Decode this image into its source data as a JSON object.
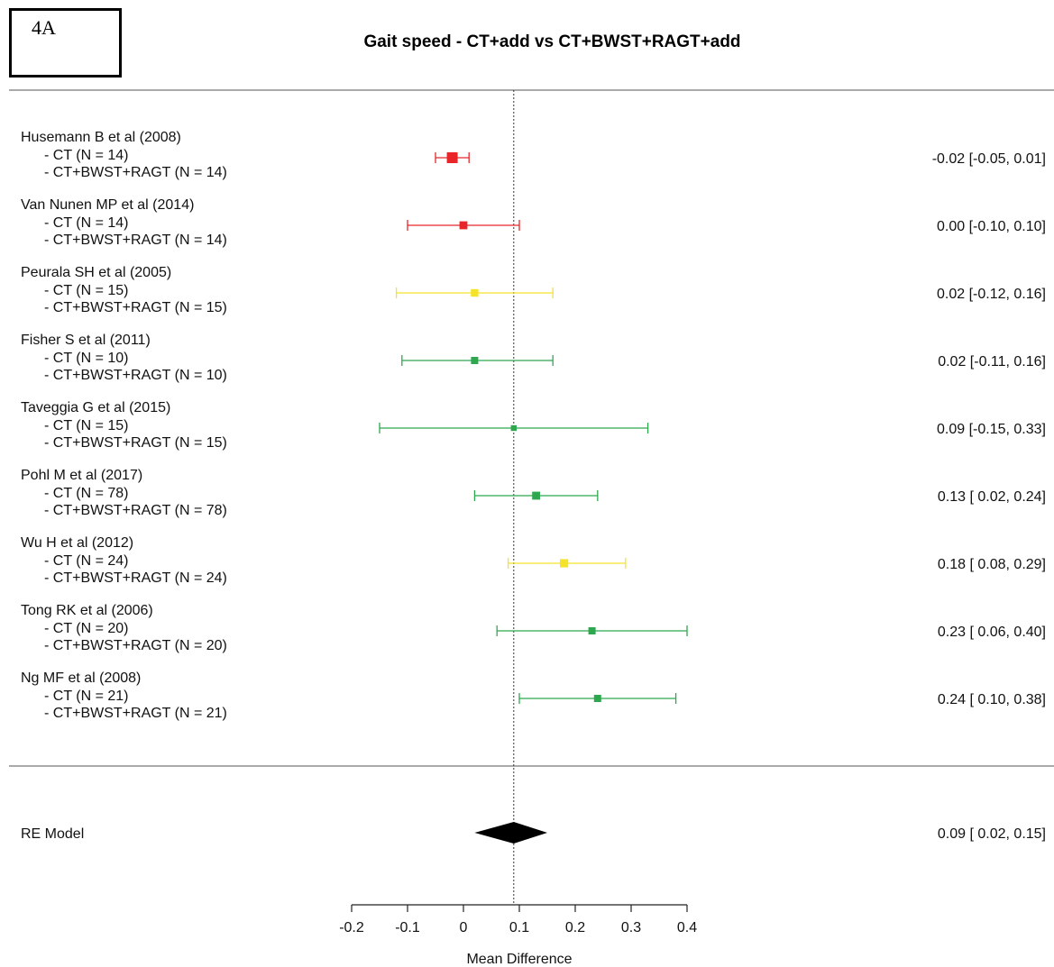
{
  "panel_label": "4A",
  "chart_data": {
    "type": "forest",
    "title": "Gait speed - CT+add vs CT+BWST+RAGT+add",
    "xlabel": "Mean Difference",
    "xlim": [
      -0.2,
      0.4
    ],
    "xticks": [
      -0.2,
      -0.1,
      0,
      0.1,
      0.2,
      0.3,
      0.4
    ],
    "xtick_labels": [
      "-0.2",
      "-0.1",
      "0",
      "0.1",
      "0.2",
      "0.3",
      "0.4"
    ],
    "reference_line": 0.09,
    "studies": [
      {
        "name": "Husemann B et al (2008)",
        "arm1": "- CT (N = 14)",
        "arm2": "- CT+BWST+RAGT (N = 14)",
        "md": -0.02,
        "lower": -0.05,
        "upper": 0.01,
        "ci_text": "-0.02 [-0.05, 0.01]",
        "color": "#e8262a",
        "weight": 1.0
      },
      {
        "name": "Van Nunen MP et al (2014)",
        "arm1": "- CT (N = 14)",
        "arm2": "- CT+BWST+RAGT (N = 14)",
        "md": 0.0,
        "lower": -0.1,
        "upper": 0.1,
        "ci_text": "0.00 [-0.10, 0.10]",
        "color": "#e8262a",
        "weight": 0.6
      },
      {
        "name": "Peurala SH et al (2005)",
        "arm1": "- CT (N = 15)",
        "arm2": "- CT+BWST+RAGT (N = 15)",
        "md": 0.02,
        "lower": -0.12,
        "upper": 0.16,
        "ci_text": "0.02 [-0.12, 0.16]",
        "color": "#f5e32a",
        "weight": 0.55
      },
      {
        "name": "Fisher S et al (2011)",
        "arm1": "- CT (N = 10)",
        "arm2": "- CT+BWST+RAGT (N = 10)",
        "md": 0.02,
        "lower": -0.11,
        "upper": 0.16,
        "ci_text": "0.02 [-0.11, 0.16]",
        "color": "#2ea84f",
        "weight": 0.5
      },
      {
        "name": "Taveggia G et al (2015)",
        "arm1": "- CT (N = 15)",
        "arm2": "- CT+BWST+RAGT (N = 15)",
        "md": 0.09,
        "lower": -0.15,
        "upper": 0.33,
        "ci_text": "0.09 [-0.15, 0.33]",
        "color": "#2ea84f",
        "weight": 0.3
      },
      {
        "name": "Pohl M et al (2017)",
        "arm1": "- CT (N = 78)",
        "arm2": "- CT+BWST+RAGT (N = 78)",
        "md": 0.13,
        "lower": 0.02,
        "upper": 0.24,
        "ci_text": "0.13 [ 0.02, 0.24]",
        "color": "#2ea84f",
        "weight": 0.6
      },
      {
        "name": "Wu H et al (2012)",
        "arm1": "- CT (N = 24)",
        "arm2": "- CT+BWST+RAGT (N = 24)",
        "md": 0.18,
        "lower": 0.08,
        "upper": 0.29,
        "ci_text": "0.18 [ 0.08, 0.29]",
        "color": "#f5e32a",
        "weight": 0.65
      },
      {
        "name": "Tong RK et al (2006)",
        "arm1": "- CT (N = 20)",
        "arm2": "- CT+BWST+RAGT (N = 20)",
        "md": 0.23,
        "lower": 0.06,
        "upper": 0.4,
        "ci_text": "0.23 [ 0.06, 0.40]",
        "color": "#2ea84f",
        "weight": 0.5
      },
      {
        "name": "Ng MF et al (2008)",
        "arm1": "- CT (N = 21)",
        "arm2": "- CT+BWST+RAGT (N = 21)",
        "md": 0.24,
        "lower": 0.1,
        "upper": 0.38,
        "ci_text": "0.24 [ 0.10, 0.38]",
        "color": "#2ea84f",
        "weight": 0.5
      }
    ],
    "summary": {
      "label": "RE Model",
      "md": 0.09,
      "lower": 0.02,
      "upper": 0.15,
      "ci_text": "0.09 [ 0.02, 0.15]",
      "color": "#000000"
    }
  }
}
